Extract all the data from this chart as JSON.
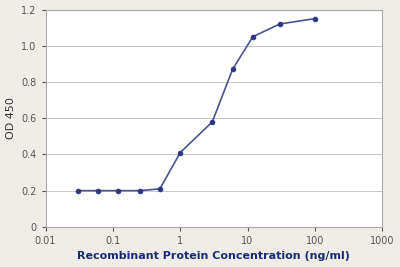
{
  "x": [
    0.03,
    0.06,
    0.12,
    0.25,
    0.5,
    1.0,
    3.0,
    6.0,
    12.0,
    30.0,
    100.0
  ],
  "y": [
    0.2,
    0.2,
    0.2,
    0.2,
    0.21,
    0.41,
    0.58,
    0.87,
    1.05,
    1.12,
    1.15
  ],
  "xlim": [
    0.01,
    1000
  ],
  "ylim": [
    0,
    1.2
  ],
  "yticks": [
    0,
    0.2,
    0.4,
    0.6,
    0.8,
    1.0,
    1.2
  ],
  "xticks": [
    0.01,
    0.1,
    1,
    10,
    100,
    1000
  ],
  "xticklabels": [
    "0.01",
    "0.1",
    "1",
    "10",
    "100",
    "1000"
  ],
  "xlabel": "Recombinant Protein Concentration (ng/ml)",
  "ylabel": "OD 450",
  "line_color": "#4a5490",
  "marker_color": "#2b3580",
  "bg_color": "#f0ede8",
  "plot_bg": "#ffffff",
  "grid_color": "#c8c8c8",
  "spine_color": "#aaaaaa",
  "tick_color": "#555555",
  "xlabel_color": "#1a2a7a",
  "ylabel_color": "#333333",
  "xlabel_fontsize": 8,
  "ylabel_fontsize": 8,
  "tick_fontsize": 7,
  "line_width": 1.2,
  "marker_size": 3.5
}
